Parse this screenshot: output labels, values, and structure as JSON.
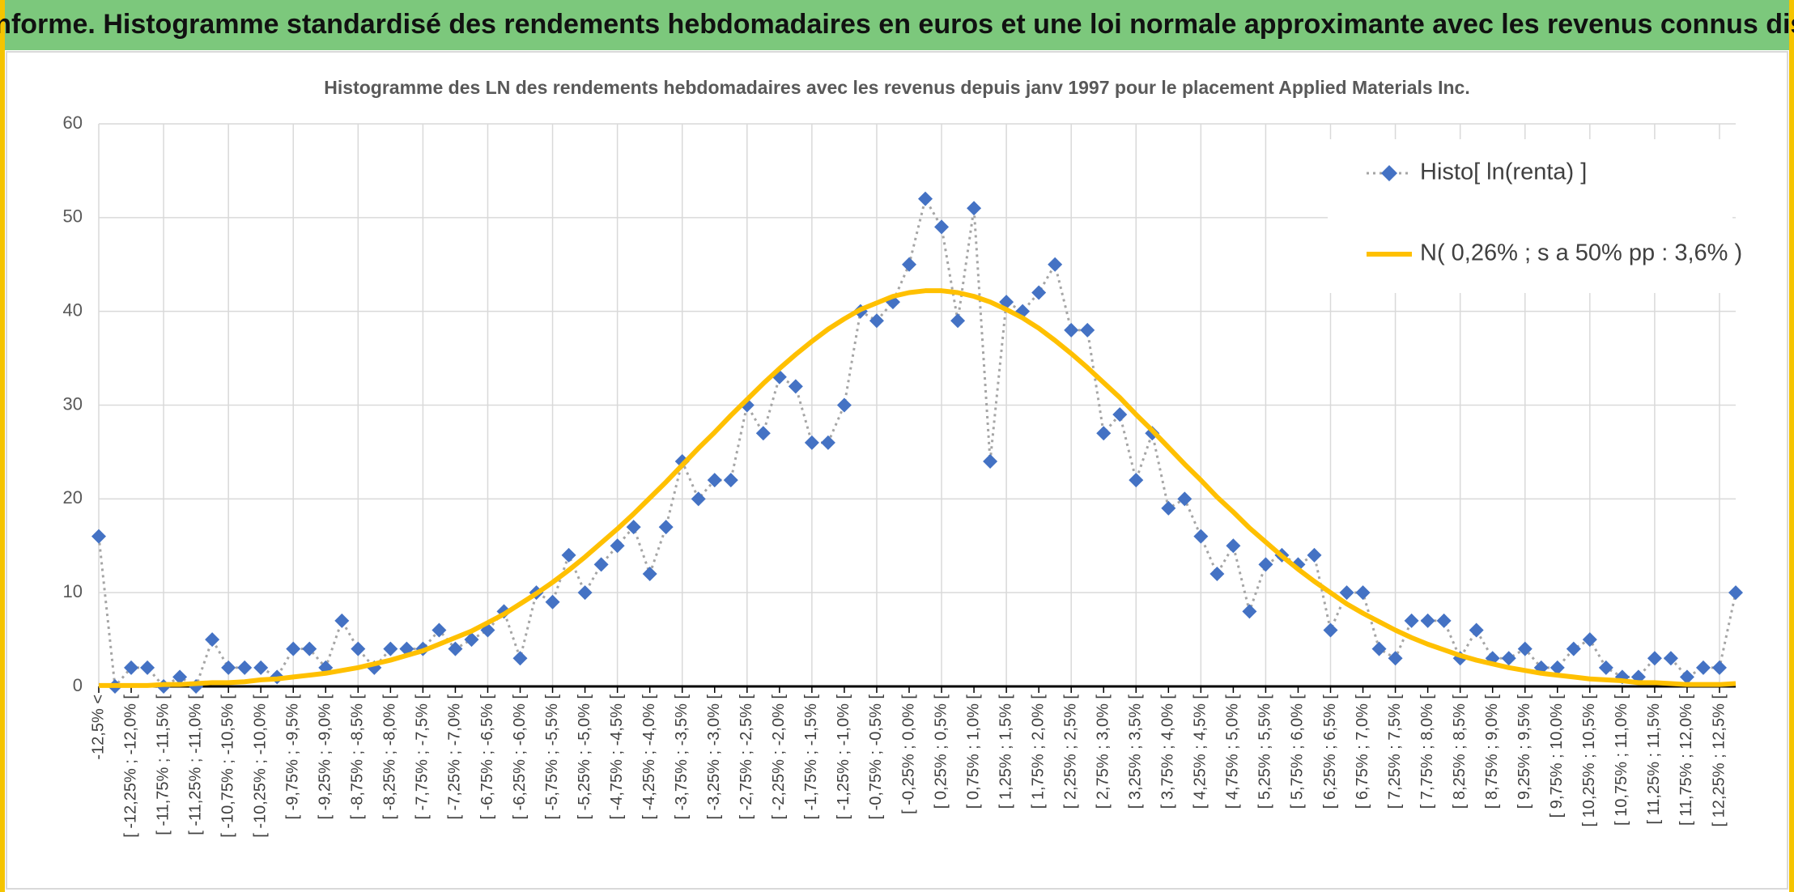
{
  "header": {
    "title": "ADAM Informe. Histogramme standardisé des rendements hebdomadaires en euros et une loi normale approximante avec les revenus connus distribués"
  },
  "chart_data": {
    "type": "line",
    "title": "Histogramme des LN des rendements hebdomadaires avec les revenus depuis janv 1997 pour le placement Applied Materials  Inc.",
    "categories": [
      "-12,5% <",
      null,
      "[ -12,25% ; -12,0% [",
      null,
      "[ -11,75% ; -11,5% [",
      null,
      "[ -11,25% ; -11,0% [",
      null,
      "[ -10,75% ; -10,5% [",
      null,
      "[ -10,25% ; -10,0% [",
      null,
      "[ -9,75% ; -9,5% [",
      null,
      "[ -9,25% ; -9,0% [",
      null,
      "[ -8,75% ; -8,5% [",
      null,
      "[ -8,25% ; -8,0% [",
      null,
      "[ -7,75% ; -7,5% [",
      null,
      "[ -7,25% ; -7,0% [",
      null,
      "[ -6,75% ; -6,5% [",
      null,
      "[ -6,25% ; -6,0% [",
      null,
      "[ -5,75% ; -5,5% [",
      null,
      "[ -5,25% ; -5,0% [",
      null,
      "[ -4,75% ; -4,5% [",
      null,
      "[ -4,25% ; -4,0% [",
      null,
      "[ -3,75% ; -3,5% [",
      null,
      "[ -3,25% ; -3,0% [",
      null,
      "[ -2,75% ; -2,5% [",
      null,
      "[ -2,25% ; -2,0% [",
      null,
      "[ -1,75% ; -1,5% [",
      null,
      "[ -1,25% ; -1,0% [",
      null,
      "[ -0,75% ; -0,5% [",
      null,
      "[ -0,25% ; 0,0% [",
      null,
      "[ 0,25% ; 0,5% [",
      null,
      "[ 0,75% ; 1,0% [",
      null,
      "[ 1,25% ; 1,5% [",
      null,
      "[ 1,75% ; 2,0% [",
      null,
      "[ 2,25% ; 2,5% [",
      null,
      "[ 2,75% ; 3,0% [",
      null,
      "[ 3,25% ; 3,5% [",
      null,
      "[ 3,75% ; 4,0% [",
      null,
      "[ 4,25% ; 4,5% [",
      null,
      "[ 4,75% ; 5,0% [",
      null,
      "[ 5,25% ; 5,5% [",
      null,
      "[ 5,75% ; 6,0% [",
      null,
      "[ 6,25% ; 6,5% [",
      null,
      "[ 6,75% ; 7,0% [",
      null,
      "[ 7,25% ; 7,5% [",
      null,
      "[ 7,75% ; 8,0% [",
      null,
      "[ 8,25% ; 8,5% [",
      null,
      "[ 8,75% ; 9,0% [",
      null,
      "[ 9,25% ; 9,5% [",
      null,
      "[ 9,75% ; 10,0% [",
      null,
      "[ 10,25% ; 10,5% [",
      null,
      "[ 10,75% ; 11,0% [",
      null,
      "[ 11,25% ; 11,5% [",
      null,
      "[ 11,75% ; 12,0% [",
      null,
      "[ 12,25% ; 12,5% [",
      null
    ],
    "series": [
      {
        "name": "Histo[ ln(renta) ]",
        "color": "#4472c4",
        "line_color": "#a5a5a5",
        "line_style": "dotted",
        "marker": "diamond",
        "values": [
          16,
          0,
          2,
          2,
          0,
          1,
          0,
          5,
          2,
          2,
          2,
          1,
          4,
          4,
          2,
          7,
          4,
          2,
          4,
          4,
          4,
          6,
          4,
          5,
          6,
          8,
          3,
          10,
          9,
          14,
          10,
          13,
          15,
          17,
          12,
          17,
          24,
          20,
          22,
          22,
          30,
          27,
          33,
          32,
          26,
          26,
          30,
          40,
          39,
          41,
          45,
          52,
          49,
          39,
          51,
          24,
          41,
          40,
          42,
          45,
          38,
          38,
          27,
          29,
          22,
          27,
          19,
          20,
          16,
          12,
          15,
          8,
          13,
          14,
          13,
          14,
          6,
          10,
          10,
          4,
          3,
          7,
          7,
          7,
          3,
          6,
          3,
          3,
          4,
          2,
          2,
          4,
          5,
          2,
          1,
          1,
          3,
          3,
          1,
          2,
          2,
          10
        ]
      },
      {
        "name": "N( 0,26% ; s a 50% pp : 3,6% )",
        "color": "#ffc000",
        "line_style": "solid",
        "marker": "none",
        "values": [
          0.1,
          0.1,
          0.1,
          0.1,
          0.2,
          0.2,
          0.3,
          0.4,
          0.4,
          0.5,
          0.7,
          0.8,
          1.0,
          1.2,
          1.4,
          1.7,
          2.0,
          2.4,
          2.8,
          3.3,
          3.8,
          4.5,
          5.2,
          5.9,
          6.8,
          7.7,
          8.8,
          9.9,
          11.1,
          12.4,
          13.8,
          15.3,
          16.8,
          18.4,
          20.1,
          21.8,
          23.6,
          25.4,
          27.1,
          28.9,
          30.6,
          32.3,
          33.9,
          35.4,
          36.8,
          38.1,
          39.2,
          40.2,
          40.9,
          41.6,
          42.0,
          42.2,
          42.2,
          42.0,
          41.6,
          41.0,
          40.2,
          39.3,
          38.2,
          36.9,
          35.5,
          34.0,
          32.4,
          30.8,
          29.0,
          27.3,
          25.5,
          23.7,
          22.0,
          20.2,
          18.6,
          16.9,
          15.4,
          13.9,
          12.5,
          11.2,
          10.0,
          8.8,
          7.8,
          6.9,
          6.0,
          5.2,
          4.5,
          3.9,
          3.3,
          2.8,
          2.4,
          2.0,
          1.7,
          1.4,
          1.2,
          1.0,
          0.8,
          0.7,
          0.6,
          0.4,
          0.4,
          0.3,
          0.2,
          0.2,
          0.2,
          0.3
        ]
      }
    ],
    "ylim": [
      0,
      60
    ],
    "yticks": [
      0,
      10,
      20,
      30,
      40,
      50,
      60
    ],
    "grid": true,
    "xgrid_interval": 4,
    "legend": "upper right"
  }
}
